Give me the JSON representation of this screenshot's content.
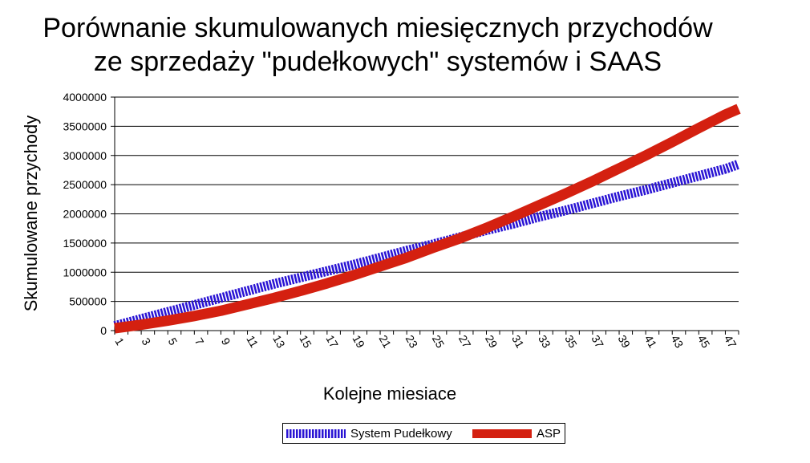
{
  "chart_data": {
    "type": "line",
    "title": "Porównanie skumulowanych miesięcznych przychodów ze sprzedaży \"pudełkowych\" systemów i SAAS",
    "title_lines": [
      "Porównanie skumulowanych miesięcznych przychodów",
      "ze sprzedaży \"pudełkowych\" systemów i SAAS"
    ],
    "xlabel": "Kolejne miesiace",
    "ylabel": "Skumulowane przychody",
    "x_tick_labels": [
      "1",
      "3",
      "5",
      "7",
      "9",
      "11",
      "13",
      "15",
      "17",
      "19",
      "21",
      "23",
      "25",
      "27",
      "29",
      "31",
      "33",
      "35",
      "37",
      "39",
      "41",
      "43",
      "45",
      "47"
    ],
    "x_range": [
      1,
      48
    ],
    "ylim": [
      0,
      4000000
    ],
    "y_ticks": [
      0,
      500000,
      1000000,
      1500000,
      2000000,
      2500000,
      3000000,
      3500000,
      4000000
    ],
    "y_tick_labels": [
      "0",
      "500000",
      "1000000",
      "1500000",
      "2000000",
      "2500000",
      "3000000",
      "3500000",
      "4000000"
    ],
    "grid": true,
    "legend_position": "bottom",
    "series": [
      {
        "name": "System Pudełkowy",
        "color": "#2a14d4",
        "x": [
          1,
          3,
          5,
          7,
          9,
          11,
          13,
          15,
          17,
          19,
          21,
          23,
          25,
          27,
          29,
          31,
          33,
          35,
          37,
          39,
          41,
          43,
          45,
          47,
          48
        ],
        "values": [
          80000,
          200000,
          320000,
          440000,
          560000,
          680000,
          800000,
          910000,
          1020000,
          1130000,
          1250000,
          1370000,
          1480000,
          1600000,
          1720000,
          1830000,
          1950000,
          2060000,
          2180000,
          2300000,
          2410000,
          2530000,
          2650000,
          2770000,
          2850000
        ]
      },
      {
        "name": "ASP",
        "color": "#d42010",
        "x": [
          1,
          3,
          5,
          7,
          9,
          11,
          13,
          15,
          17,
          19,
          21,
          23,
          25,
          27,
          29,
          31,
          33,
          35,
          37,
          39,
          41,
          43,
          45,
          47,
          48
        ],
        "values": [
          40000,
          100000,
          170000,
          250000,
          340000,
          450000,
          560000,
          680000,
          810000,
          950000,
          1100000,
          1250000,
          1420000,
          1580000,
          1760000,
          1950000,
          2150000,
          2350000,
          2560000,
          2780000,
          3000000,
          3230000,
          3470000,
          3700000,
          3800000
        ]
      }
    ]
  }
}
